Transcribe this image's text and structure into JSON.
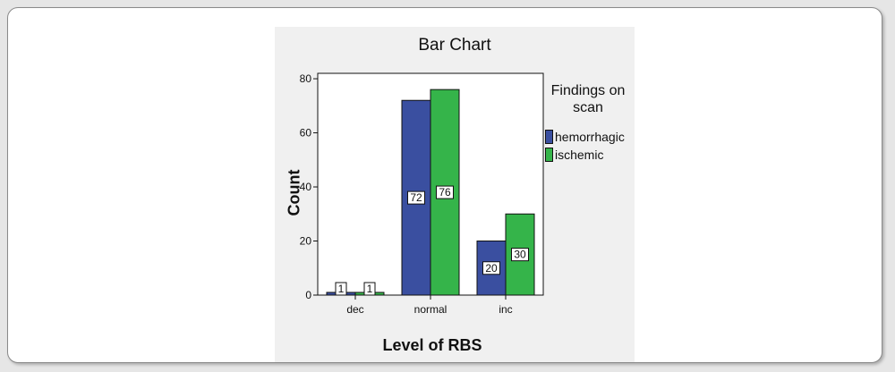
{
  "chart_data": {
    "type": "bar",
    "title": "Bar Chart",
    "xlabel": "Level of RBS",
    "ylabel": "Count",
    "categories": [
      "dec",
      "normal",
      "inc"
    ],
    "series": [
      {
        "name": "hemorrhagic",
        "values": [
          1,
          72,
          20
        ],
        "color": "#3a4fa0"
      },
      {
        "name": "ischemic",
        "values": [
          1,
          76,
          30
        ],
        "color": "#35b44a"
      }
    ],
    "ylim": [
      0,
      82
    ],
    "yticks": [
      0,
      20,
      40,
      60,
      80
    ],
    "legend_title": [
      "Findings on",
      "scan"
    ],
    "legend_position": "right",
    "grid": false,
    "data_labels": true
  }
}
